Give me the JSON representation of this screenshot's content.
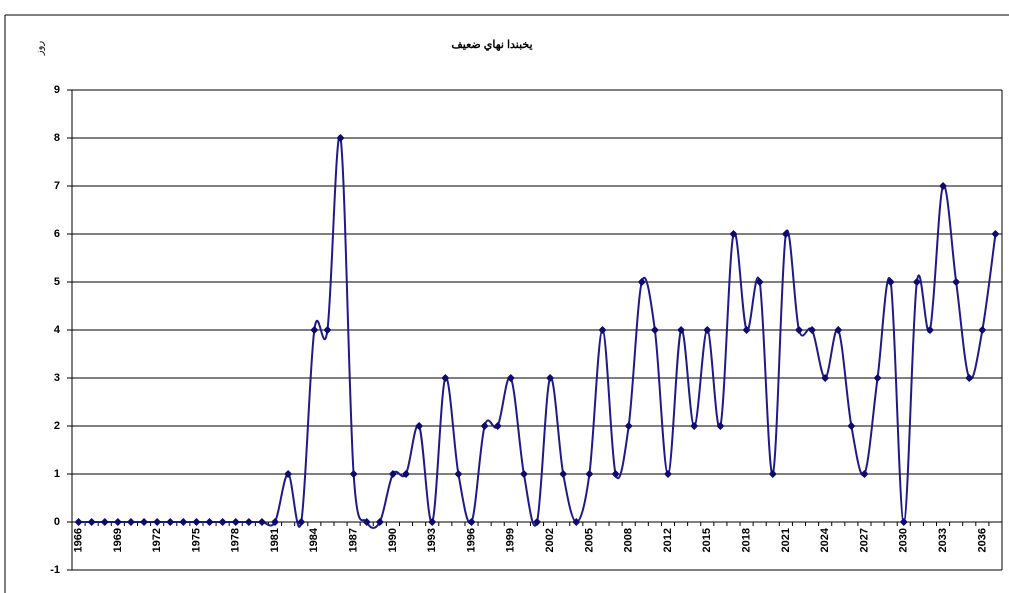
{
  "chart_data": {
    "type": "line",
    "title": "يخبندا نهاي ضعيف",
    "ylabel": "روز",
    "categories": [
      "1966",
      null,
      null,
      "1969",
      null,
      null,
      "1972",
      null,
      null,
      "1975",
      null,
      null,
      "1978",
      null,
      null,
      "1981",
      null,
      null,
      "1984",
      null,
      null,
      "1987",
      null,
      null,
      "1990",
      null,
      null,
      "1993",
      null,
      null,
      "1996",
      null,
      null,
      "1999",
      null,
      null,
      "2002",
      null,
      null,
      "2005",
      null,
      null,
      "2008",
      null,
      null,
      "2012",
      null,
      null,
      "2015",
      null,
      null,
      "2018",
      null,
      null,
      "2021",
      null,
      null,
      "2024",
      null,
      null,
      "2027",
      null,
      null,
      "2030",
      null,
      null,
      "2033",
      null,
      null,
      "2036",
      null
    ],
    "series": [
      {
        "name": "يخبندا نهاي ضعيف",
        "color": "#1f1a8a",
        "values": [
          0,
          0,
          0,
          0,
          0,
          0,
          0,
          0,
          0,
          0,
          0,
          0,
          0,
          0,
          0,
          0,
          1,
          0,
          4,
          4,
          8,
          1,
          0,
          0,
          1,
          1,
          2,
          0,
          3,
          1,
          0,
          2,
          2,
          3,
          1,
          0,
          3,
          1,
          0,
          1,
          4,
          1,
          2,
          5,
          4,
          1,
          4,
          2,
          4,
          2,
          6,
          4,
          5,
          1,
          6,
          4,
          4,
          3,
          4,
          2,
          1,
          3,
          5,
          0,
          5,
          4,
          7,
          5,
          3,
          4,
          6
        ]
      }
    ],
    "ylim": [
      -1,
      9
    ],
    "yticks": [
      -1,
      0,
      1,
      2,
      3,
      4,
      5,
      6,
      7,
      8,
      9
    ],
    "grid": true,
    "smooth": true
  }
}
